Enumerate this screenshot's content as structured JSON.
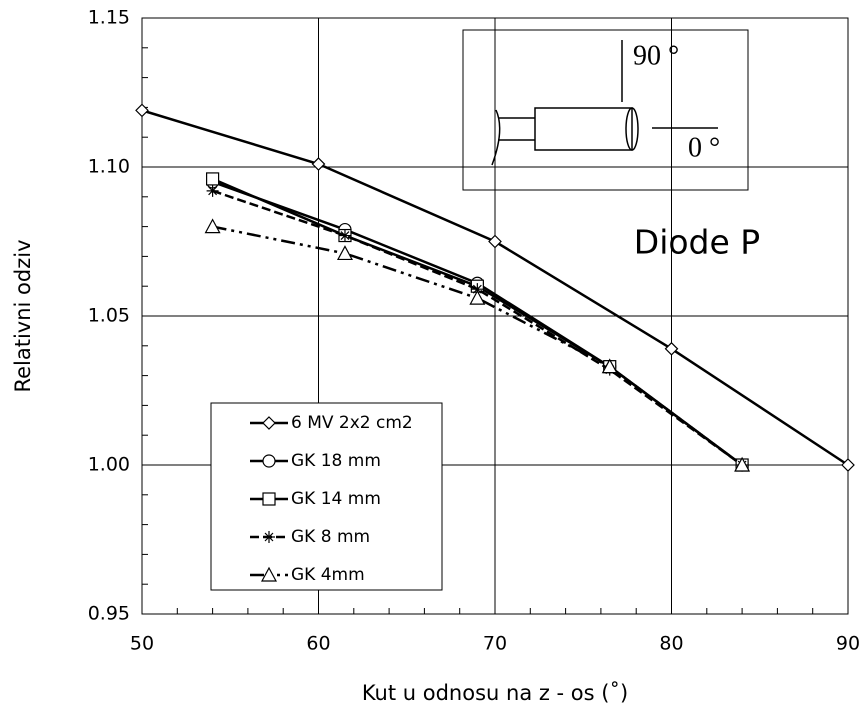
{
  "chart_data": {
    "type": "line",
    "x_label": "Kut u odnosu na z - os (˚)",
    "y_label": "Relativni odziv",
    "annotation": "Diode P",
    "inset_labels": [
      "90 °",
      "0 °"
    ],
    "xlim": [
      50,
      90
    ],
    "xticks": [
      50,
      60,
      70,
      80,
      90
    ],
    "ylim": [
      0.95,
      1.15
    ],
    "yticks": [
      0.95,
      {
        "value": 1.0,
        "label": "1.00"
      },
      1.05,
      {
        "value": 1.1,
        "label": "1.10"
      },
      1.15
    ],
    "grid": true,
    "legend": "lower left",
    "series": [
      {
        "name": "6 MV 2x2 cm2",
        "color": "#000000",
        "marker": "diamond",
        "line_style": "solid",
        "x": [
          50,
          60,
          70,
          80,
          90
        ],
        "values": [
          1.119,
          1.101,
          1.075,
          1.039,
          1.0
        ]
      },
      {
        "name": "GK 18 mm",
        "color": "#000000",
        "marker": "circle",
        "line_style": "solid",
        "x": [
          54,
          61.5,
          69,
          76.5,
          84
        ],
        "values": [
          1.095,
          1.079,
          1.061,
          1.033,
          1.0
        ]
      },
      {
        "name": "GK 14 mm",
        "color": "#000000",
        "marker": "square",
        "line_style": "solid",
        "x": [
          54,
          61.5,
          69,
          76.5,
          84
        ],
        "values": [
          1.096,
          1.077,
          1.06,
          1.033,
          1.0
        ]
      },
      {
        "name": "GK 8 mm",
        "color": "#000000",
        "marker": "star",
        "line_style": "dashed",
        "x": [
          54,
          61.5,
          69,
          76.5,
          84
        ],
        "values": [
          1.092,
          1.077,
          1.059,
          1.032,
          1.0
        ]
      },
      {
        "name": "GK 4mm",
        "color": "#000000",
        "marker": "triangle",
        "line_style": "dashdotdot",
        "x": [
          54,
          61.5,
          69,
          76.5,
          84
        ],
        "values": [
          1.08,
          1.071,
          1.056,
          1.033,
          1.0
        ]
      }
    ]
  }
}
